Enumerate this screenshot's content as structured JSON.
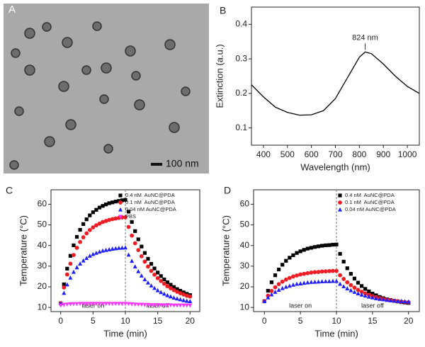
{
  "image_panel": {
    "label": "A",
    "scale_bar": "100 nm"
  },
  "chart_data": [
    {
      "type": "line",
      "label": "B",
      "xlabel": "Wavelength (nm)",
      "ylabel": "Extinction (a.u.)",
      "color": "#000000",
      "x": [
        350,
        400,
        450,
        500,
        550,
        600,
        650,
        700,
        750,
        800,
        824,
        850,
        900,
        950,
        1000,
        1050
      ],
      "values": [
        0.225,
        0.19,
        0.16,
        0.145,
        0.137,
        0.138,
        0.15,
        0.185,
        0.245,
        0.305,
        0.32,
        0.315,
        0.285,
        0.25,
        0.22,
        0.2
      ],
      "xlim": [
        350,
        1050
      ],
      "ylim": [
        0.05,
        0.45
      ],
      "xticks": [
        400,
        500,
        600,
        700,
        800,
        900,
        1000
      ],
      "yticks": [
        0.1,
        0.2,
        0.3,
        0.4
      ],
      "annotations": [
        {
          "text": "824 nm",
          "x": 824,
          "y": 0.32
        }
      ]
    },
    {
      "type": "scatter",
      "label": "C",
      "xlabel": "Time (min)",
      "ylabel": "Temperature (°C)",
      "legend": "upper right",
      "vline": 10,
      "x": [
        0,
        0.5,
        1,
        1.5,
        2,
        2.5,
        3,
        3.5,
        4,
        4.5,
        5,
        5.5,
        6,
        6.5,
        7,
        7.5,
        8,
        8.5,
        9,
        9.5,
        10,
        10.5,
        11,
        11.5,
        12,
        12.5,
        13,
        13.5,
        14,
        14.5,
        15,
        15.5,
        16,
        16.5,
        17,
        17.5,
        18,
        18.5,
        19,
        19.5,
        20
      ],
      "series": [
        {
          "name": "0.4 nM  AuNC@PDA",
          "color": "#000000",
          "marker": "square",
          "values": [
            12,
            21.2,
            28.8,
            35.0,
            40.1,
            44.2,
            47.6,
            50.4,
            52.7,
            54.6,
            56.1,
            57.3,
            58.4,
            59.2,
            59.9,
            60.5,
            60.9,
            61.3,
            61.6,
            61.9,
            62.1,
            56.4,
            51.4,
            47.0,
            43.0,
            39.5,
            36.4,
            33.6,
            31.1,
            28.9,
            26.9,
            25.2,
            23.6,
            22.2,
            21.0,
            19.9,
            18.9,
            18.1,
            17.3,
            16.6,
            16.0
          ]
        },
        {
          "name": "0.1 nM  AuNC@PDA",
          "color": "#ee1c24",
          "marker": "circle",
          "values": [
            12,
            19.7,
            26.0,
            31.2,
            35.4,
            38.9,
            41.7,
            44.0,
            45.9,
            47.5,
            48.8,
            49.8,
            50.6,
            51.4,
            51.9,
            52.4,
            52.8,
            53.1,
            53.4,
            53.6,
            53.7,
            49.0,
            44.8,
            41.1,
            37.8,
            34.8,
            32.2,
            29.8,
            27.7,
            25.9,
            24.2,
            22.8,
            21.5,
            20.3,
            19.3,
            18.4,
            17.6,
            16.9,
            16.3,
            15.7,
            15.3
          ]
        },
        {
          "name": "0.04 nM AuNC@PDA",
          "color": "#1f1fff",
          "marker": "triangle-up",
          "values": [
            12,
            17.0,
            21.1,
            24.4,
            27.2,
            29.4,
            31.2,
            32.7,
            33.9,
            35.0,
            35.8,
            36.4,
            37.0,
            37.5,
            37.8,
            38.1,
            38.4,
            38.6,
            38.8,
            38.9,
            39.0,
            35.5,
            32.5,
            29.8,
            27.5,
            25.4,
            23.6,
            22.0,
            20.6,
            19.4,
            18.3,
            17.4,
            16.6,
            15.9,
            15.3,
            14.7,
            14.3,
            13.9,
            13.5,
            13.2,
            13.0
          ]
        },
        {
          "name": "PBS",
          "color": "#ff33ff",
          "marker": "triangle-down",
          "values": [
            11.0,
            11.3,
            11.5,
            11.6,
            11.7,
            11.7,
            11.8,
            11.8,
            11.8,
            11.8,
            11.8,
            11.8,
            11.8,
            11.8,
            11.8,
            11.8,
            11.8,
            11.8,
            11.8,
            11.8,
            11.8,
            11.7,
            11.6,
            11.5,
            11.4,
            11.4,
            11.3,
            11.3,
            11.2,
            11.2,
            11.2,
            11.1,
            11.1,
            11.1,
            11.1,
            11.0,
            11.0,
            11.0,
            11.0,
            11.0,
            11.0
          ]
        }
      ],
      "xlim": [
        -1.5,
        21.5
      ],
      "ylim": [
        8,
        67
      ],
      "xticks": [
        0,
        5,
        10,
        15,
        20
      ],
      "yticks": [
        10,
        20,
        30,
        40,
        50,
        60
      ],
      "annotations": [
        {
          "text": "laser on",
          "x": 5
        },
        {
          "text": "laser off",
          "x": 15
        }
      ]
    },
    {
      "type": "scatter",
      "label": "D",
      "xlabel": "Time (min)",
      "ylabel": "Temperature (°C)",
      "legend": "upper right",
      "vline": 10,
      "x": [
        0,
        0.5,
        1,
        1.5,
        2,
        2.5,
        3,
        3.5,
        4,
        4.5,
        5,
        5.5,
        6,
        6.5,
        7,
        7.5,
        8,
        8.5,
        9,
        9.5,
        10,
        10.5,
        11,
        11.5,
        12,
        12.5,
        13,
        13.5,
        14,
        14.5,
        15,
        15.5,
        16,
        16.5,
        17,
        17.5,
        18,
        18.5,
        19,
        19.5,
        20
      ],
      "series": [
        {
          "name": "0.4 nM  AuNC@PDA",
          "color": "#000000",
          "marker": "square",
          "values": [
            13,
            18.1,
            22.2,
            25.6,
            28.4,
            30.7,
            32.6,
            34.1,
            35.3,
            36.4,
            37.2,
            37.9,
            38.5,
            38.9,
            39.3,
            39.6,
            39.9,
            40.1,
            40.2,
            40.4,
            40.5,
            36.0,
            32.2,
            29.0,
            26.3,
            24.0,
            22.0,
            20.4,
            19.0,
            17.8,
            16.7,
            15.9,
            15.1,
            14.5,
            14.0,
            13.6,
            13.2,
            12.9,
            12.6,
            12.4,
            12.2
          ]
        },
        {
          "name": "0.1 nM  AuNC@PDA",
          "color": "#ee1c24",
          "marker": "circle",
          "values": [
            13,
            15.7,
            18.0,
            19.8,
            21.3,
            22.5,
            23.5,
            24.3,
            25.0,
            25.5,
            26.0,
            26.3,
            26.6,
            26.9,
            27.1,
            27.2,
            27.4,
            27.5,
            27.6,
            27.7,
            27.7,
            25.6,
            23.8,
            22.2,
            20.8,
            19.6,
            18.5,
            17.6,
            16.8,
            16.1,
            15.5,
            15.0,
            14.5,
            14.1,
            13.8,
            13.5,
            13.2,
            13.0,
            12.8,
            12.6,
            12.5
          ]
        },
        {
          "name": "0.04 nM AuNC@PDA",
          "color": "#1f1fff",
          "marker": "triangle-up",
          "values": [
            13,
            14.8,
            16.3,
            17.5,
            18.5,
            19.3,
            20.0,
            20.5,
            21.0,
            21.4,
            21.6,
            21.9,
            22.1,
            22.3,
            22.4,
            22.5,
            22.6,
            22.7,
            22.7,
            22.8,
            22.8,
            21.4,
            20.2,
            19.2,
            18.3,
            17.5,
            16.8,
            16.2,
            15.7,
            15.2,
            14.8,
            14.4,
            14.1,
            13.9,
            13.6,
            13.4,
            13.3,
            13.1,
            13.0,
            12.9,
            12.8
          ]
        }
      ],
      "xlim": [
        -1.5,
        21.5
      ],
      "ylim": [
        8,
        67
      ],
      "xticks": [
        0,
        5,
        10,
        15,
        20
      ],
      "yticks": [
        10,
        20,
        30,
        40,
        50,
        60
      ],
      "annotations": [
        {
          "text": "laser on",
          "x": 5
        },
        {
          "text": "laser off",
          "x": 15
        }
      ]
    }
  ]
}
